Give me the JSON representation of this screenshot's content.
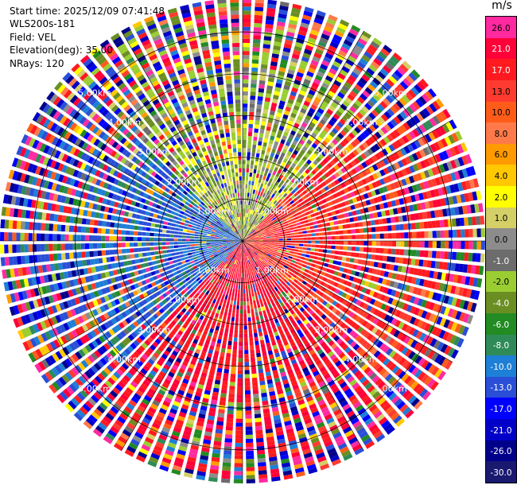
{
  "header": {
    "start_time": "Start time: 2025/12/09 07:41:48",
    "instrument": "WLS200s-181",
    "field": "Field: VEL",
    "elevation": "Elevation(deg): 35.00",
    "nrays": "NRays: 120"
  },
  "colorbar": {
    "unit": "m/s",
    "ticks": [
      "26.0",
      "21.0",
      "17.0",
      "13.0",
      "10.0",
      "8.0",
      "6.0",
      "4.0",
      "2.0",
      "1.0",
      "0.0",
      "-1.0",
      "-2.0",
      "-4.0",
      "-6.0",
      "-8.0",
      "-10.0",
      "-13.0",
      "-17.0",
      "-21.0",
      "-26.0",
      "-30.0"
    ],
    "colors": [
      "#ff2aa0",
      "#ff0038",
      "#ff1a20",
      "#ff3b2f",
      "#ff5c1a",
      "#ff7a4a",
      "#ff9a00",
      "#ffc800",
      "#ffff00",
      "#d4cf66",
      "#8c8c8c",
      "#6c6c6c",
      "#9acd32",
      "#6b8e23",
      "#228b22",
      "#2e8b57",
      "#1e7fd6",
      "#2a4fd6",
      "#0000ff",
      "#0000c8",
      "#00008b",
      "#191970"
    ]
  },
  "chart_data": {
    "type": "ppi",
    "field": "VEL",
    "instrument": "WLS200s-181",
    "elevation_deg": 35.0,
    "n_rays": 120,
    "range_rings_km": [
      1.0,
      2.0,
      3.0,
      4.0,
      5.0
    ],
    "ring_labels": [
      "1.00km",
      "2.00km",
      "3.00km",
      "4.00km",
      "5.00km"
    ],
    "max_range_km": 5.8,
    "vmin": -30.0,
    "vmax": 26.0,
    "dominant_velocity_by_sector": [
      {
        "azimuth_from_deg": 315,
        "azimuth_to_deg": 45,
        "velocity_ms": -2.0
      },
      {
        "azimuth_from_deg": 45,
        "azimuth_to_deg": 135,
        "velocity_ms": 13.0
      },
      {
        "azimuth_from_deg": 135,
        "azimuth_to_deg": 225,
        "velocity_ms": 17.0
      },
      {
        "azimuth_from_deg": 225,
        "azimuth_to_deg": 315,
        "velocity_ms": -13.0
      }
    ]
  }
}
